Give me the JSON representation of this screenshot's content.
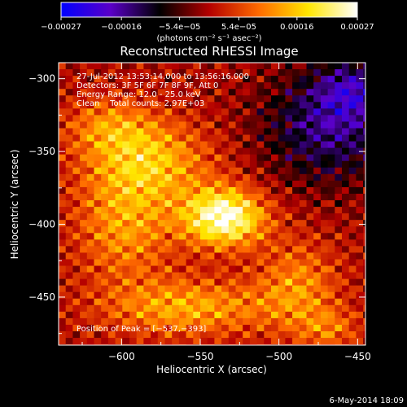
{
  "chart_data": {
    "type": "heatmap",
    "title": "Reconstructed RHESSI Image",
    "xlabel": "Heliocentric X (arcsec)",
    "ylabel": "Heliocentric Y (arcsec)",
    "xlim": [
      -640,
      -445
    ],
    "ylim": [
      -483,
      -289
    ],
    "x_ticks": [
      -600,
      -550,
      -500,
      -450
    ],
    "x_tick_labels": [
      "−600",
      "−550",
      "−500",
      "−450"
    ],
    "y_ticks": [
      -300,
      -350,
      -400,
      -450
    ],
    "y_tick_labels": [
      "−300",
      "−350",
      "−400",
      "−450"
    ],
    "colorbar": {
      "min": -0.00027,
      "max": 0.00027,
      "ticks": [
        -0.00027,
        -0.00016,
        -5.4e-05,
        5.4e-05,
        0.00016,
        0.00027
      ],
      "tick_labels": [
        "−0.00027",
        "−0.00016",
        "−5.4e−05",
        "5.4e−05",
        "0.00016",
        "0.00027"
      ],
      "unit_label": "(photons cm⁻² s⁻¹ asec⁻²)",
      "colormap": [
        "#0000ff",
        "#5a00c8",
        "#000000",
        "#b40000",
        "#ff6a00",
        "#ffe600",
        "#ffffff"
      ]
    },
    "annotations": {
      "time_range": "27-Jul-2012 13:53:14.000 to 13:56:16.000",
      "detectors": "Detectors: 3F 5F 6F 7F 8F 9F, Att 0",
      "energy_range": "Energy Range: 12.0 - 25.0 keV",
      "method_counts": "Clean    Total counts: 2.97E+03",
      "peak": "Position of Peak = [−537,−393]"
    },
    "peak_position": [
      -537,
      -393
    ],
    "footer_date": "6-May-2014 18:09",
    "sources": [
      {
        "x": -537,
        "y": -393,
        "amp": 1.0,
        "sx": 18,
        "sy": 14
      },
      {
        "x": -585,
        "y": -355,
        "amp": 0.55,
        "sx": 28,
        "sy": 20
      },
      {
        "x": -600,
        "y": -400,
        "amp": 0.45,
        "sx": 22,
        "sy": 26
      },
      {
        "x": -560,
        "y": -455,
        "amp": 0.5,
        "sx": 38,
        "sy": 14
      },
      {
        "x": -610,
        "y": -330,
        "amp": 0.35,
        "sx": 20,
        "sy": 14
      },
      {
        "x": -490,
        "y": -440,
        "amp": 0.4,
        "sx": 18,
        "sy": 22
      },
      {
        "x": -470,
        "y": -470,
        "amp": 0.3,
        "sx": 14,
        "sy": 10
      },
      {
        "x": -470,
        "y": -330,
        "amp": -0.55,
        "sx": 30,
        "sy": 28
      },
      {
        "x": -455,
        "y": -305,
        "amp": -0.4,
        "sx": 16,
        "sy": 14
      }
    ]
  }
}
